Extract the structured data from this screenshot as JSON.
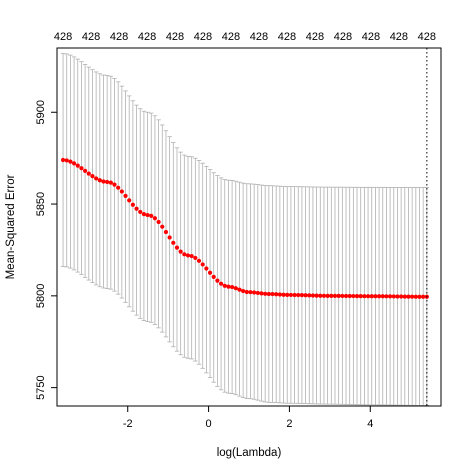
{
  "chart_data": {
    "type": "scatter",
    "title": "",
    "xlabel": "log(Lambda)",
    "ylabel": "Mean-Squared Error",
    "xlim": [
      -3.75,
      5.75
    ],
    "ylim": [
      5740,
      5935
    ],
    "x_ticks": [
      -2,
      0,
      2,
      4
    ],
    "x_tick_labels": [
      "-2",
      "0",
      "2",
      "4"
    ],
    "y_ticks": [
      5750,
      5800,
      5850,
      5900
    ],
    "y_tick_labels": [
      "5750",
      "5800",
      "5850",
      "5900"
    ],
    "top_axis_labels": [
      "428",
      "428",
      "428",
      "428",
      "428",
      "428",
      "428",
      "428",
      "428",
      "428",
      "428",
      "428",
      "428",
      "428"
    ],
    "x_range": [
      -3.6,
      5.4
    ],
    "n_points": 100,
    "mean_curve": {
      "x": [
        -3.6,
        -2.5,
        -1.5,
        -0.5,
        0.5,
        1.0,
        1.5,
        2.0,
        3.0,
        4.0,
        5.4
      ],
      "y": [
        5874,
        5862,
        5844,
        5822,
        5805,
        5802,
        5801,
        5800.5,
        5800,
        5799.8,
        5799.5
      ]
    },
    "upper_band": {
      "x": [
        -3.6,
        -2.5,
        -1.5,
        -0.5,
        0.5,
        1.0,
        1.5,
        2.0,
        3.0,
        4.0,
        5.4
      ],
      "y": [
        5932,
        5920,
        5900,
        5876,
        5863,
        5861,
        5860,
        5859.5,
        5859.2,
        5859.1,
        5859
      ]
    },
    "lower_band": {
      "x": [
        -3.6,
        -2.5,
        -1.5,
        -0.5,
        0.5,
        1.0,
        1.5,
        2.0,
        3.0,
        4.0,
        5.4
      ],
      "y": [
        5816,
        5804,
        5786,
        5766,
        5747,
        5744,
        5742,
        5741.5,
        5741,
        5740.6,
        5740.3
      ]
    },
    "vertical_lines": [
      5.4
    ],
    "colors": {
      "points": "#ff0000",
      "error_bars": "#b0b0b0",
      "axis": "#000000",
      "vline": "#000000"
    },
    "grid": false,
    "legend": "none"
  }
}
